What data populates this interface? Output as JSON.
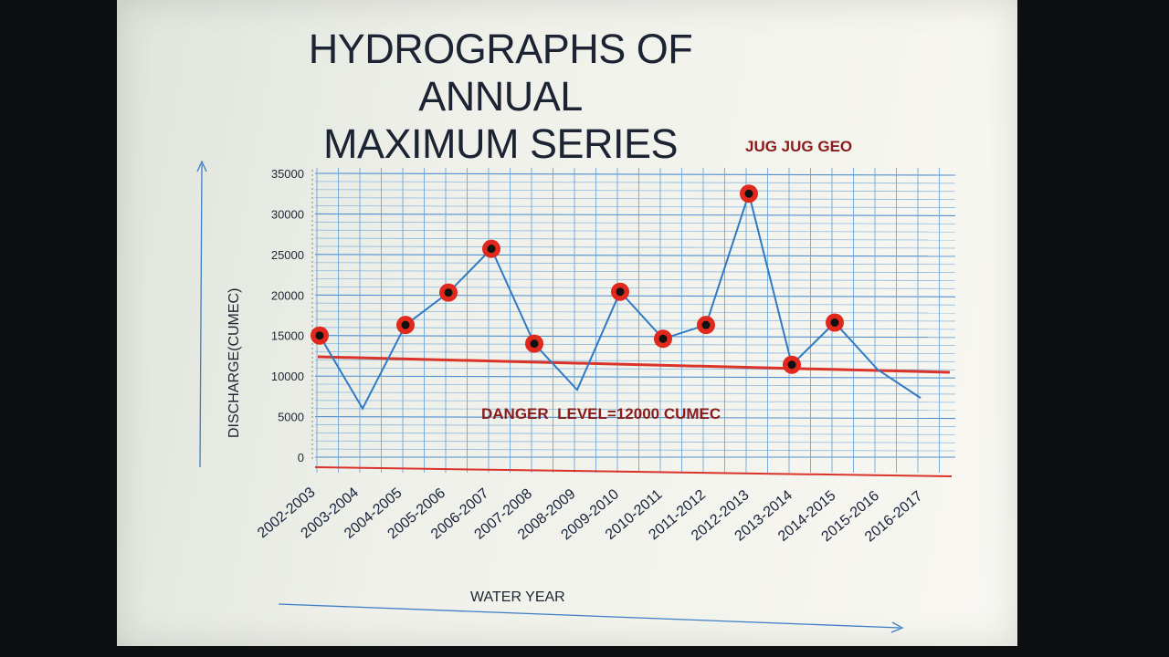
{
  "title_line1": "HYDROGRAPHS OF ANNUAL",
  "title_line2": "MAXIMUM SERIES",
  "credit": "JUG JUG GEO",
  "chart_data": {
    "type": "line",
    "xlabel": "WATER YEAR",
    "ylabel": "DISCHARGE(CUMEC)",
    "ylim": [
      0,
      35000
    ],
    "yticks": [
      0,
      5000,
      10000,
      15000,
      20000,
      25000,
      30000,
      35000
    ],
    "grid": true,
    "categories": [
      "2002-2003",
      "2003-2004",
      "2004-2005",
      "2005-2006",
      "2006-2007",
      "2007-2008",
      "2008-2009",
      "2009-2010",
      "2010-2011",
      "2011-2012",
      "2012-2013",
      "2013-2014",
      "2014-2015",
      "2015-2016",
      "2016-2017"
    ],
    "series": [
      {
        "values": [
          15000,
          6000,
          16300,
          20300,
          25700,
          14000,
          8300,
          20400,
          14600,
          16300,
          32500,
          11400,
          16600,
          10800,
          7300
        ],
        "marked": [
          true,
          false,
          true,
          true,
          true,
          true,
          false,
          true,
          true,
          true,
          true,
          true,
          true,
          false,
          false
        ],
        "color": "#2f7ac4",
        "marker_color": "#e0281d"
      }
    ],
    "danger_line": {
      "label": "DANGER  LEVEL=12000 CUMEC",
      "color": "#d9332a"
    }
  }
}
